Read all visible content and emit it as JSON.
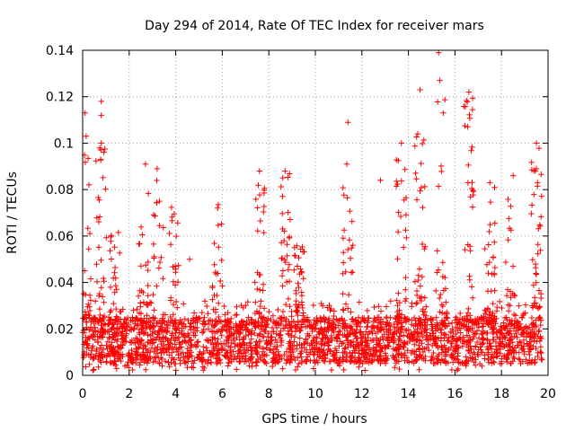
{
  "chart_data": {
    "type": "scatter",
    "title": "Day 294 of 2014, Rate Of TEC Index for receiver mars",
    "xlabel": "GPS time / hours",
    "ylabel": "ROTI / TECUs",
    "xlim": [
      0,
      20
    ],
    "ylim": [
      0,
      0.14
    ],
    "x_ticks": [
      0,
      2,
      4,
      6,
      8,
      10,
      12,
      14,
      16,
      18,
      20
    ],
    "x_tick_labels": [
      "0",
      "2",
      "4",
      "6",
      "8",
      "10",
      "12",
      "14",
      "16",
      "18",
      "20"
    ],
    "y_ticks": [
      0,
      0.02,
      0.04,
      0.06,
      0.08,
      0.1,
      0.12,
      0.14
    ],
    "y_tick_labels": [
      "0",
      "0.02",
      "0.04",
      "0.06",
      "0.08",
      "0.1",
      "0.12",
      "0.14"
    ],
    "grid": true,
    "marker": "+",
    "color": "#ff0000",
    "data_extent_hours": [
      0,
      19.75
    ],
    "baseline_band": [
      0.005,
      0.025
    ],
    "notable_points": [
      {
        "x": 0.1,
        "y": 0.113
      },
      {
        "x": 0.15,
        "y": 0.103
      },
      {
        "x": 0.8,
        "y": 0.118
      },
      {
        "x": 0.8,
        "y": 0.112
      },
      {
        "x": 0.8,
        "y": 0.1
      },
      {
        "x": 2.7,
        "y": 0.091
      },
      {
        "x": 3.2,
        "y": 0.089
      },
      {
        "x": 3.3,
        "y": 0.075
      },
      {
        "x": 4.6,
        "y": 0.05
      },
      {
        "x": 5.8,
        "y": 0.072
      },
      {
        "x": 7.6,
        "y": 0.088
      },
      {
        "x": 8.7,
        "y": 0.088
      },
      {
        "x": 11.4,
        "y": 0.109
      },
      {
        "x": 11.35,
        "y": 0.091
      },
      {
        "x": 12.8,
        "y": 0.084
      },
      {
        "x": 13.7,
        "y": 0.1
      },
      {
        "x": 14.4,
        "y": 0.104
      },
      {
        "x": 14.5,
        "y": 0.123
      },
      {
        "x": 15.3,
        "y": 0.139
      },
      {
        "x": 15.35,
        "y": 0.127
      },
      {
        "x": 15.5,
        "y": 0.113
      },
      {
        "x": 16.6,
        "y": 0.122
      },
      {
        "x": 16.55,
        "y": 0.107
      },
      {
        "x": 17.5,
        "y": 0.083
      },
      {
        "x": 18.5,
        "y": 0.086
      },
      {
        "x": 19.5,
        "y": 0.1
      },
      {
        "x": 19.5,
        "y": 0.089
      },
      {
        "x": 19.55,
        "y": 0.083
      }
    ],
    "clusters": [
      {
        "x": 0.15,
        "peak": 0.095
      },
      {
        "x": 0.8,
        "peak": 0.1
      },
      {
        "x": 1.4,
        "peak": 0.063
      },
      {
        "x": 2.6,
        "peak": 0.08
      },
      {
        "x": 3.25,
        "peak": 0.088
      },
      {
        "x": 3.9,
        "peak": 0.073
      },
      {
        "x": 5.8,
        "peak": 0.074
      },
      {
        "x": 7.6,
        "peak": 0.088
      },
      {
        "x": 8.7,
        "peak": 0.088
      },
      {
        "x": 9.3,
        "peak": 0.057
      },
      {
        "x": 11.4,
        "peak": 0.09
      },
      {
        "x": 13.7,
        "peak": 0.1
      },
      {
        "x": 14.5,
        "peak": 0.106
      },
      {
        "x": 15.4,
        "peak": 0.127
      },
      {
        "x": 16.6,
        "peak": 0.12
      },
      {
        "x": 17.5,
        "peak": 0.082
      },
      {
        "x": 18.4,
        "peak": 0.08
      },
      {
        "x": 19.5,
        "peak": 0.1
      }
    ]
  }
}
